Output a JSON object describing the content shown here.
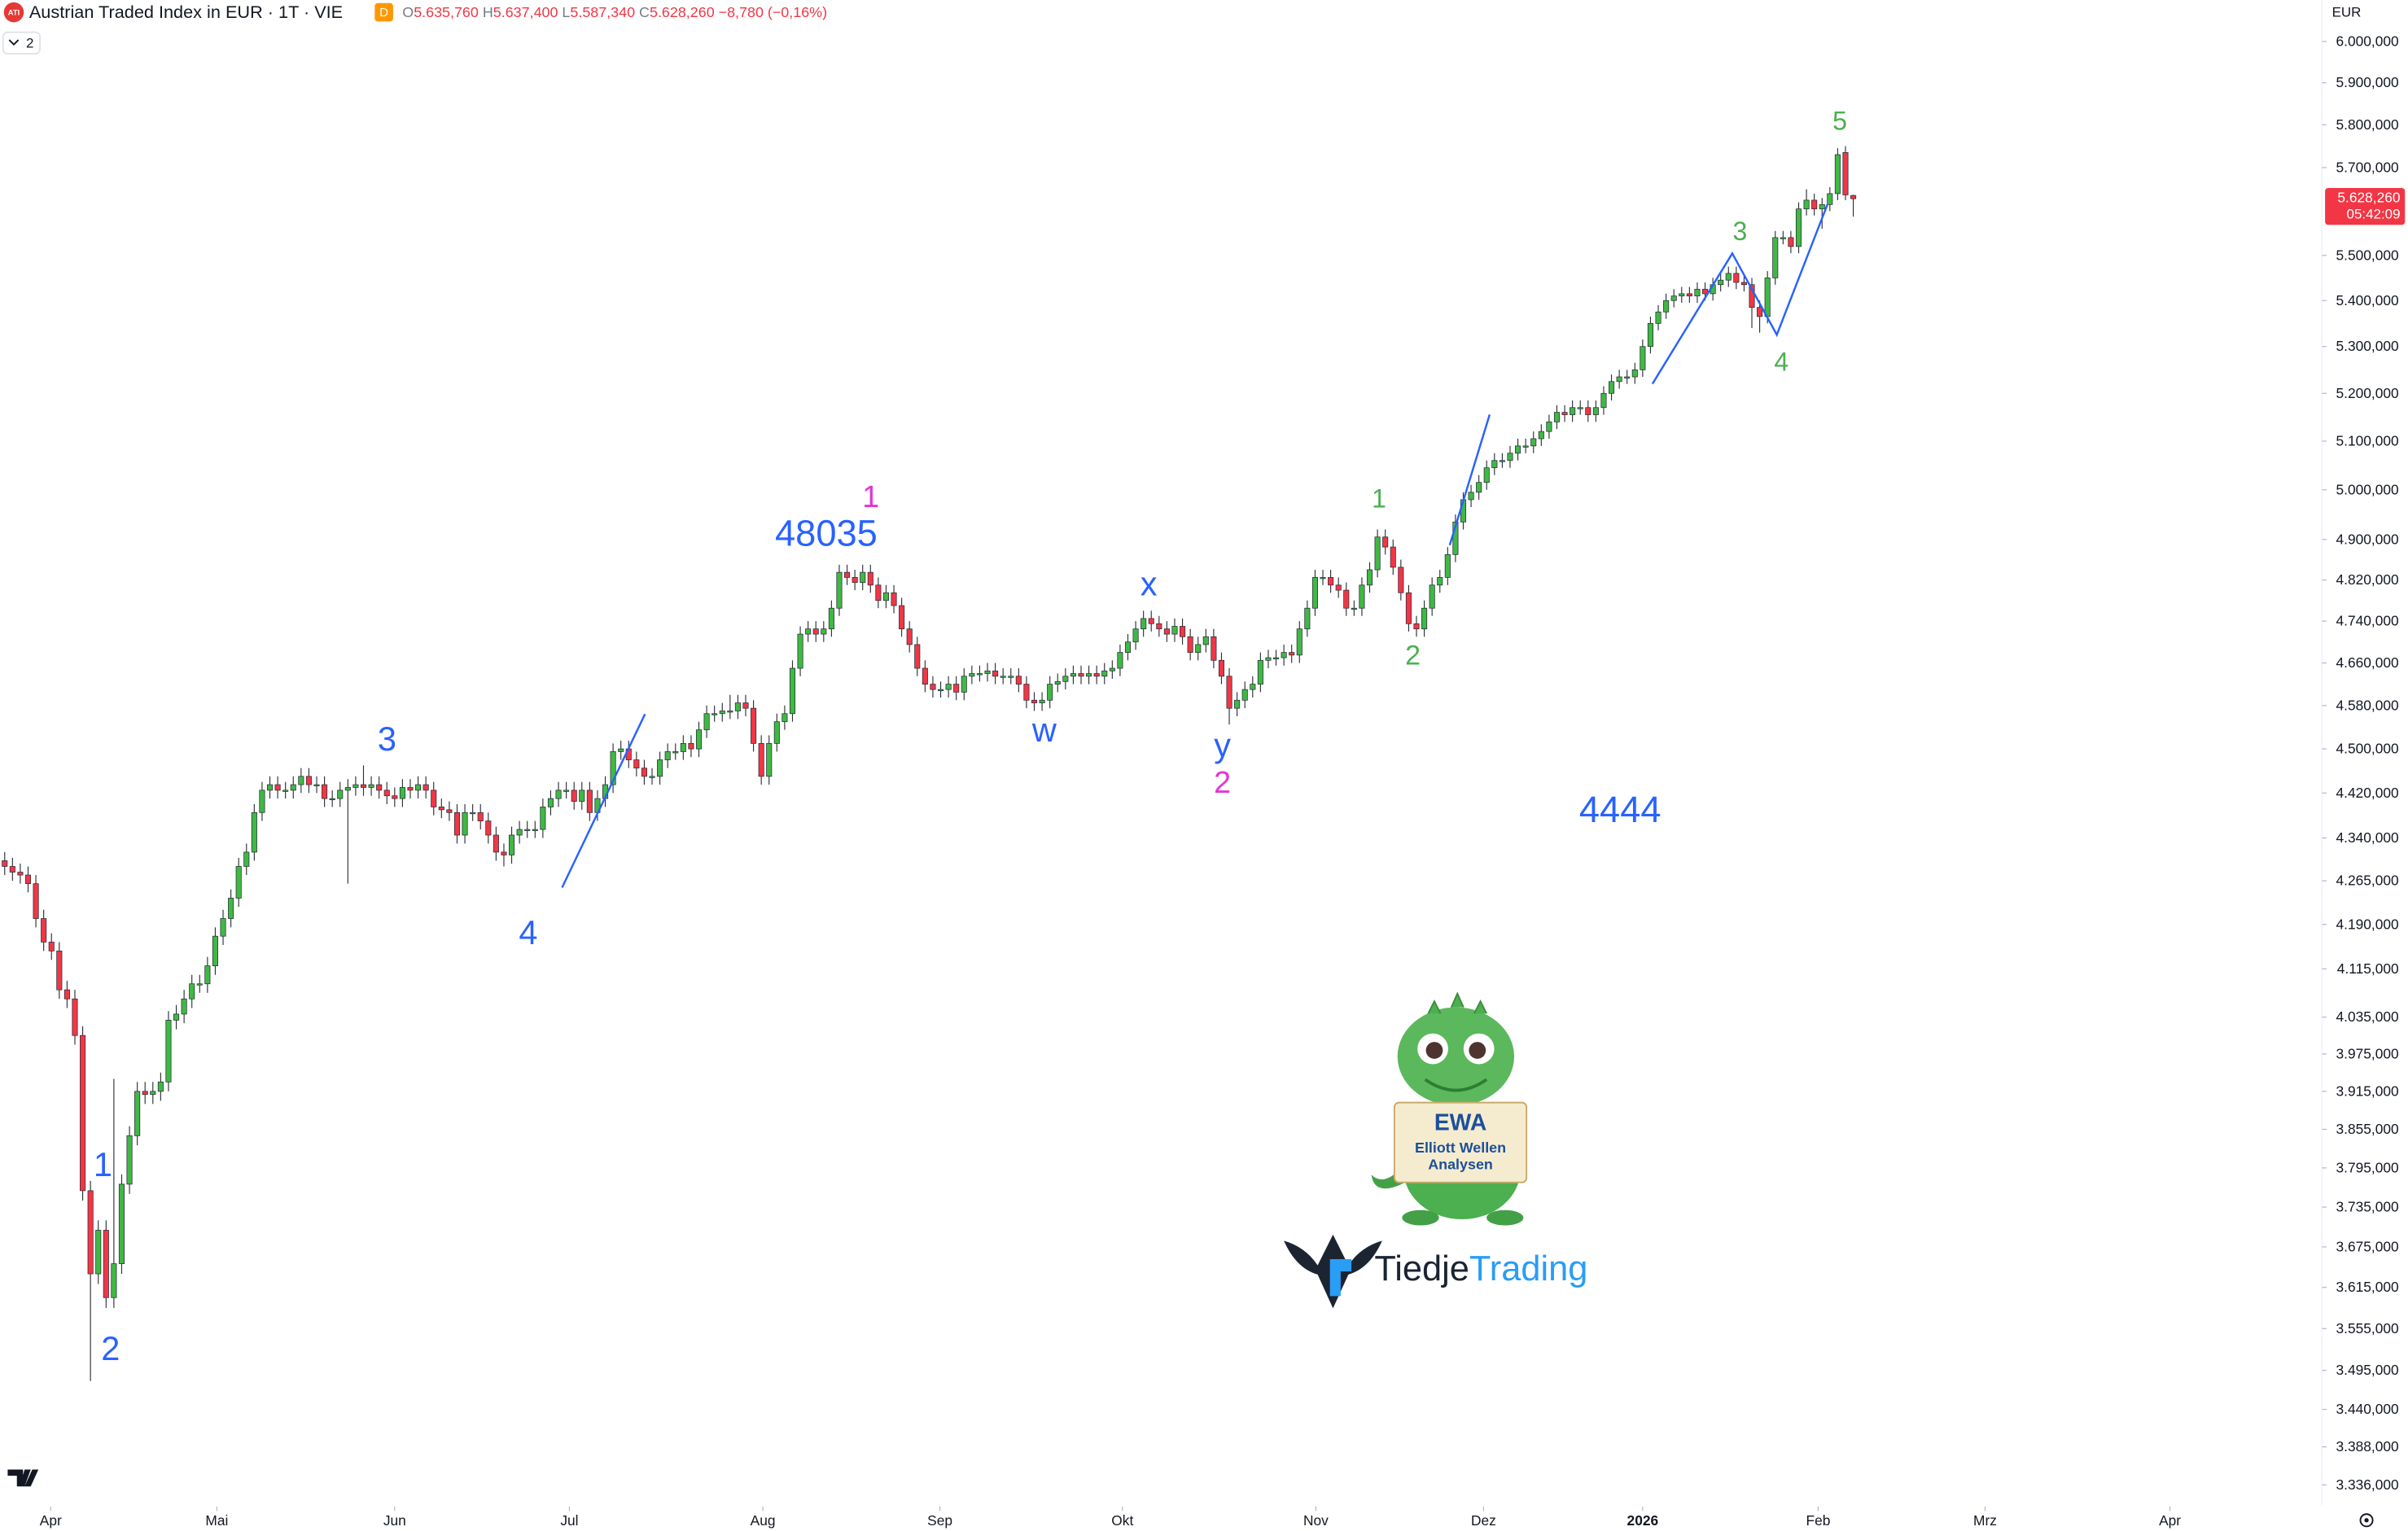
{
  "header": {
    "symbol_badge": "ATI",
    "title": "Austrian Traded Index in EUR · 1T · VIE",
    "flag": "D",
    "ohlc": [
      {
        "key": "O",
        "value": "5.635,760"
      },
      {
        "key": "H",
        "value": "5.637,400"
      },
      {
        "key": "L",
        "value": "5.587,340"
      },
      {
        "key": "C",
        "value": "5.628,260"
      }
    ],
    "change": "−8,780 (−0,16%)",
    "indicator_count": "2"
  },
  "chart_data": {
    "type": "candlestick",
    "up_color": "#3fb944",
    "down_color": "#f23645",
    "log_scale": true,
    "grid": false,
    "y_axis_label": "EUR",
    "last_price_label": "5.628,260",
    "countdown": "05:42:09",
    "open": [
      4300,
      4290,
      4280,
      4275,
      4260,
      4200,
      4160,
      4145,
      4080,
      4065,
      4005,
      3760,
      3635,
      3700,
      3600,
      3650,
      3770,
      3845,
      3915,
      3910,
      3915,
      3930,
      4030,
      4040,
      4065,
      4090,
      4090,
      4120,
      4170,
      4200,
      4235,
      4290,
      4315,
      4385,
      4425,
      4435,
      4425,
      4425,
      4435,
      4450,
      4435,
      4435,
      4410,
      4410,
      4425,
      4430,
      4435,
      4430,
      4435,
      4425,
      4415,
      4410,
      4430,
      4425,
      4435,
      4425,
      4395,
      4390,
      4385,
      4345,
      4385,
      4385,
      4370,
      4345,
      4315,
      4310,
      4345,
      4355,
      4355,
      4355,
      4395,
      4410,
      4425,
      4425,
      4405,
      4425,
      4385,
      4410,
      4435,
      4495,
      4500,
      4480,
      4465,
      4450,
      4450,
      4480,
      4495,
      4495,
      4510,
      4500,
      4535,
      4565,
      4565,
      4570,
      4570,
      4585,
      4575,
      4510,
      4450,
      4510,
      4550,
      4565,
      4650,
      4715,
      4725,
      4715,
      4725,
      4765,
      4835,
      4825,
      4815,
      4835,
      4810,
      4780,
      4795,
      4770,
      4725,
      4695,
      4650,
      4620,
      4610,
      4610,
      4620,
      4605,
      4635,
      4640,
      4640,
      4645,
      4635,
      4635,
      4635,
      4620,
      4590,
      4585,
      4590,
      4620,
      4625,
      4635,
      4640,
      4635,
      4640,
      4635,
      4645,
      4650,
      4680,
      4700,
      4725,
      4745,
      4735,
      4725,
      4715,
      4730,
      4710,
      4680,
      4695,
      4710,
      4665,
      4635,
      4575,
      4590,
      4610,
      4620,
      4665,
      4670,
      4670,
      4680,
      4675,
      4725,
      4765,
      4825,
      4825,
      4810,
      4800,
      4765,
      4765,
      4810,
      4840,
      4905,
      4885,
      4845,
      4795,
      4735,
      4725,
      4765,
      4810,
      4825,
      4870,
      4935,
      4980,
      4995,
      5015,
      5045,
      5060,
      5060,
      5075,
      5090,
      5090,
      5105,
      5120,
      5140,
      5160,
      5155,
      5170,
      5170,
      5155,
      5170,
      5200,
      5225,
      5235,
      5235,
      5250,
      5300,
      5350,
      5375,
      5400,
      5410,
      5415,
      5410,
      5425,
      5415,
      5435,
      5445,
      5460,
      5440,
      5435,
      5385,
      5365,
      5450,
      5540,
      5540,
      5520,
      5605,
      5625,
      5605,
      5615,
      5640,
      5735,
      5635.76
    ],
    "high": [
      4315,
      4305,
      4295,
      4290,
      4275,
      4215,
      4175,
      4160,
      4095,
      4080,
      4020,
      3775,
      3715,
      3715,
      3935,
      3785,
      3860,
      3930,
      3930,
      3930,
      3945,
      4045,
      4055,
      4080,
      4105,
      4105,
      4135,
      4185,
      4215,
      4250,
      4305,
      4330,
      4400,
      4440,
      4450,
      4450,
      4440,
      4450,
      4465,
      4465,
      4450,
      4450,
      4425,
      4440,
      4445,
      4450,
      4470,
      4450,
      4450,
      4440,
      4430,
      4445,
      4445,
      4450,
      4450,
      4440,
      4410,
      4405,
      4400,
      4400,
      4400,
      4400,
      4385,
      4360,
      4330,
      4360,
      4370,
      4370,
      4370,
      4410,
      4425,
      4440,
      4440,
      4440,
      4440,
      4440,
      4425,
      4450,
      4510,
      4515,
      4515,
      4495,
      4480,
      4465,
      4495,
      4510,
      4510,
      4525,
      4525,
      4550,
      4580,
      4580,
      4585,
      4600,
      4600,
      4600,
      4590,
      4525,
      4525,
      4565,
      4580,
      4665,
      4730,
      4740,
      4740,
      4740,
      4780,
      4850,
      4850,
      4840,
      4850,
      4850,
      4825,
      4810,
      4810,
      4785,
      4740,
      4710,
      4665,
      4635,
      4625,
      4635,
      4635,
      4650,
      4655,
      4655,
      4660,
      4660,
      4650,
      4650,
      4650,
      4635,
      4605,
      4605,
      4635,
      4640,
      4650,
      4655,
      4655,
      4655,
      4655,
      4660,
      4665,
      4695,
      4715,
      4740,
      4760,
      4760,
      4750,
      4740,
      4745,
      4745,
      4725,
      4710,
      4725,
      4725,
      4680,
      4650,
      4605,
      4625,
      4635,
      4680,
      4685,
      4685,
      4695,
      4695,
      4740,
      4780,
      4840,
      4840,
      4840,
      4825,
      4815,
      4780,
      4825,
      4855,
      4920,
      4920,
      4900,
      4860,
      4810,
      4750,
      4780,
      4825,
      4840,
      4885,
      4950,
      4995,
      5010,
      5030,
      5060,
      5075,
      5075,
      5090,
      5105,
      5105,
      5120,
      5135,
      5155,
      5175,
      5175,
      5185,
      5185,
      5185,
      5185,
      5215,
      5240,
      5250,
      5250,
      5265,
      5315,
      5365,
      5390,
      5415,
      5425,
      5430,
      5430,
      5440,
      5440,
      5450,
      5460,
      5475,
      5475,
      5455,
      5450,
      5400,
      5465,
      5555,
      5555,
      5555,
      5620,
      5650,
      5640,
      5630,
      5655,
      5745,
      5750,
      5637.4
    ],
    "low": [
      4275,
      4265,
      4260,
      4245,
      4185,
      4145,
      4130,
      4065,
      4050,
      3990,
      3745,
      3480,
      3620,
      3585,
      3585,
      3635,
      3755,
      3830,
      3895,
      3895,
      3900,
      3915,
      4015,
      4025,
      4050,
      4075,
      4075,
      4105,
      4155,
      4185,
      4220,
      4275,
      4300,
      4370,
      4410,
      4410,
      4410,
      4410,
      4420,
      4420,
      4420,
      4395,
      4395,
      4395,
      4260,
      4415,
      4415,
      4415,
      4410,
      4400,
      4395,
      4395,
      4410,
      4410,
      4410,
      4380,
      4375,
      4370,
      4330,
      4330,
      4370,
      4355,
      4330,
      4300,
      4290,
      4295,
      4330,
      4340,
      4340,
      4340,
      4380,
      4395,
      4410,
      4390,
      4390,
      4370,
      4370,
      4395,
      4420,
      4480,
      4465,
      4450,
      4435,
      4435,
      4435,
      4465,
      4480,
      4480,
      4485,
      4485,
      4520,
      4550,
      4550,
      4555,
      4555,
      4560,
      4495,
      4435,
      4435,
      4495,
      4535,
      4550,
      4635,
      4700,
      4700,
      4700,
      4710,
      4750,
      4810,
      4800,
      4800,
      4795,
      4765,
      4765,
      4755,
      4710,
      4680,
      4635,
      4605,
      4595,
      4595,
      4595,
      4590,
      4590,
      4620,
      4625,
      4625,
      4620,
      4620,
      4620,
      4605,
      4575,
      4570,
      4570,
      4575,
      4605,
      4610,
      4620,
      4620,
      4620,
      4620,
      4620,
      4630,
      4635,
      4665,
      4685,
      4710,
      4720,
      4710,
      4700,
      4700,
      4695,
      4665,
      4665,
      4680,
      4650,
      4620,
      4545,
      4560,
      4575,
      4595,
      4605,
      4650,
      4655,
      4655,
      4660,
      4660,
      4710,
      4750,
      4810,
      4795,
      4785,
      4750,
      4750,
      4750,
      4795,
      4825,
      4870,
      4830,
      4780,
      4720,
      4710,
      4710,
      4750,
      4795,
      4810,
      4855,
      4920,
      4965,
      4980,
      5000,
      5030,
      5045,
      5045,
      5060,
      5075,
      5075,
      5090,
      5105,
      5125,
      5140,
      5140,
      5155,
      5140,
      5140,
      5155,
      5185,
      5210,
      5220,
      5220,
      5235,
      5285,
      5335,
      5360,
      5385,
      5395,
      5395,
      5395,
      5400,
      5400,
      5420,
      5430,
      5425,
      5420,
      5340,
      5330,
      5350,
      5435,
      5525,
      5505,
      5505,
      5590,
      5590,
      5560,
      5600,
      5625,
      5625,
      5587.34
    ],
    "close": [
      4290,
      4280,
      4275,
      4260,
      4200,
      4160,
      4145,
      4080,
      4065,
      4005,
      3760,
      3635,
      3700,
      3600,
      3650,
      3770,
      3845,
      3915,
      3910,
      3915,
      3930,
      4030,
      4040,
      4065,
      4090,
      4090,
      4120,
      4170,
      4200,
      4235,
      4290,
      4315,
      4385,
      4425,
      4435,
      4425,
      4425,
      4435,
      4450,
      4435,
      4435,
      4410,
      4410,
      4425,
      4430,
      4435,
      4430,
      4435,
      4425,
      4415,
      4410,
      4430,
      4425,
      4435,
      4425,
      4395,
      4390,
      4385,
      4345,
      4385,
      4385,
      4370,
      4345,
      4315,
      4310,
      4345,
      4355,
      4355,
      4355,
      4395,
      4410,
      4425,
      4425,
      4405,
      4425,
      4385,
      4410,
      4435,
      4495,
      4500,
      4480,
      4465,
      4450,
      4450,
      4480,
      4495,
      4495,
      4510,
      4500,
      4535,
      4565,
      4565,
      4570,
      4570,
      4585,
      4575,
      4510,
      4450,
      4510,
      4550,
      4565,
      4650,
      4715,
      4725,
      4715,
      4725,
      4765,
      4835,
      4825,
      4815,
      4835,
      4810,
      4780,
      4795,
      4770,
      4725,
      4695,
      4650,
      4620,
      4610,
      4610,
      4620,
      4605,
      4635,
      4640,
      4640,
      4645,
      4635,
      4635,
      4635,
      4620,
      4590,
      4585,
      4590,
      4620,
      4625,
      4635,
      4640,
      4635,
      4640,
      4635,
      4645,
      4650,
      4680,
      4700,
      4725,
      4745,
      4735,
      4725,
      4715,
      4730,
      4710,
      4680,
      4695,
      4710,
      4665,
      4635,
      4575,
      4590,
      4610,
      4620,
      4665,
      4670,
      4670,
      4680,
      4675,
      4725,
      4765,
      4825,
      4825,
      4810,
      4800,
      4765,
      4765,
      4810,
      4840,
      4905,
      4885,
      4845,
      4795,
      4735,
      4725,
      4765,
      4810,
      4825,
      4870,
      4935,
      4980,
      4995,
      5015,
      5045,
      5060,
      5060,
      5075,
      5090,
      5090,
      5105,
      5120,
      5140,
      5160,
      5155,
      5170,
      5170,
      5155,
      5170,
      5200,
      5225,
      5235,
      5235,
      5250,
      5300,
      5350,
      5375,
      5400,
      5410,
      5415,
      5410,
      5425,
      5415,
      5435,
      5445,
      5460,
      5440,
      5435,
      5385,
      5365,
      5450,
      5540,
      5540,
      5520,
      5605,
      5625,
      5605,
      5615,
      5640,
      5730,
      5637.04,
      5628.26
    ],
    "xlim": [
      -0.6,
      296.7
    ],
    "xticks": [
      {
        "value": 5.9,
        "label": "Apr"
      },
      {
        "value": 27.2,
        "label": "Mai"
      },
      {
        "value": 50.0,
        "label": "Jun"
      },
      {
        "value": 72.4,
        "label": "Jul"
      },
      {
        "value": 97.2,
        "label": "Aug"
      },
      {
        "value": 119.9,
        "label": "Sep"
      },
      {
        "value": 143.3,
        "label": "Okt"
      },
      {
        "value": 168.1,
        "label": "Nov"
      },
      {
        "value": 189.6,
        "label": "Dez"
      },
      {
        "value": 210.0,
        "label": "2026"
      },
      {
        "value": 232.5,
        "label": "Feb"
      },
      {
        "value": 253.9,
        "label": "Mrz"
      },
      {
        "value": 277.6,
        "label": "Apr"
      }
    ],
    "ylim": [
      3309,
      6102
    ],
    "yticks": [
      {
        "value": 6000,
        "label": "6.000,000"
      },
      {
        "value": 5900,
        "label": "5.900,000"
      },
      {
        "value": 5800,
        "label": "5.800,000"
      },
      {
        "value": 5700,
        "label": "5.700,000"
      },
      {
        "value": 5500,
        "label": "5.500,000"
      },
      {
        "value": 5400,
        "label": "5.400,000"
      },
      {
        "value": 5300,
        "label": "5.300,000"
      },
      {
        "value": 5200,
        "label": "5.200,000"
      },
      {
        "value": 5100,
        "label": "5.100,000"
      },
      {
        "value": 5000,
        "label": "5.000,000"
      },
      {
        "value": 4900,
        "label": "4.900,000"
      },
      {
        "value": 4820,
        "label": "4.820,000"
      },
      {
        "value": 4740,
        "label": "4.740,000"
      },
      {
        "value": 4660,
        "label": "4.660,000"
      },
      {
        "value": 4580,
        "label": "4.580,000"
      },
      {
        "value": 4500,
        "label": "4.500,000"
      },
      {
        "value": 4420,
        "label": "4.420,000"
      },
      {
        "value": 4340,
        "label": "4.340,000"
      },
      {
        "value": 4265,
        "label": "4.265,000"
      },
      {
        "value": 4190,
        "label": "4.190,000"
      },
      {
        "value": 4115,
        "label": "4.115,000"
      },
      {
        "value": 4035,
        "label": "4.035,000"
      },
      {
        "value": 3975,
        "label": "3.975,000"
      },
      {
        "value": 3915,
        "label": "3.915,000"
      },
      {
        "value": 3855,
        "label": "3.855,000"
      },
      {
        "value": 3795,
        "label": "3.795,000"
      },
      {
        "value": 3735,
        "label": "3.735,000"
      },
      {
        "value": 3675,
        "label": "3.675,000"
      },
      {
        "value": 3615,
        "label": "3.615,000"
      },
      {
        "value": 3555,
        "label": "3.555,000"
      },
      {
        "value": 3495,
        "label": "3.495,000"
      },
      {
        "value": 3440,
        "label": "3.440,000"
      },
      {
        "value": 3388,
        "label": "3.388,000"
      },
      {
        "value": 3336,
        "label": "3.336,000"
      }
    ],
    "annotations": [
      {
        "text": "1",
        "color": "#2962ff"
      },
      {
        "text": "2",
        "color": "#2962ff"
      },
      {
        "text": "3",
        "color": "#2962ff"
      },
      {
        "text": "4",
        "color": "#2962ff"
      },
      {
        "text": "48035",
        "color": "#2962ff"
      },
      {
        "text": "1",
        "color": "#e535d6"
      },
      {
        "text": "x",
        "color": "#2962ff"
      },
      {
        "text": "w",
        "color": "#2962ff"
      },
      {
        "text": "y",
        "color": "#2962ff"
      },
      {
        "text": "2",
        "color": "#e535d6"
      },
      {
        "text": "1",
        "color": "#4caf50"
      },
      {
        "text": "2",
        "color": "#4caf50"
      },
      {
        "text": "4444",
        "color": "#2962ff"
      },
      {
        "text": "3",
        "color": "#4caf50"
      },
      {
        "text": "4",
        "color": "#4caf50"
      },
      {
        "text": "5",
        "color": "#4caf50"
      }
    ]
  },
  "watermark": {
    "badge": [
      "EWA",
      "Elliott Wellen",
      "Analysen"
    ],
    "brand_dark": "Tiedje",
    "brand_light": "Trading"
  }
}
